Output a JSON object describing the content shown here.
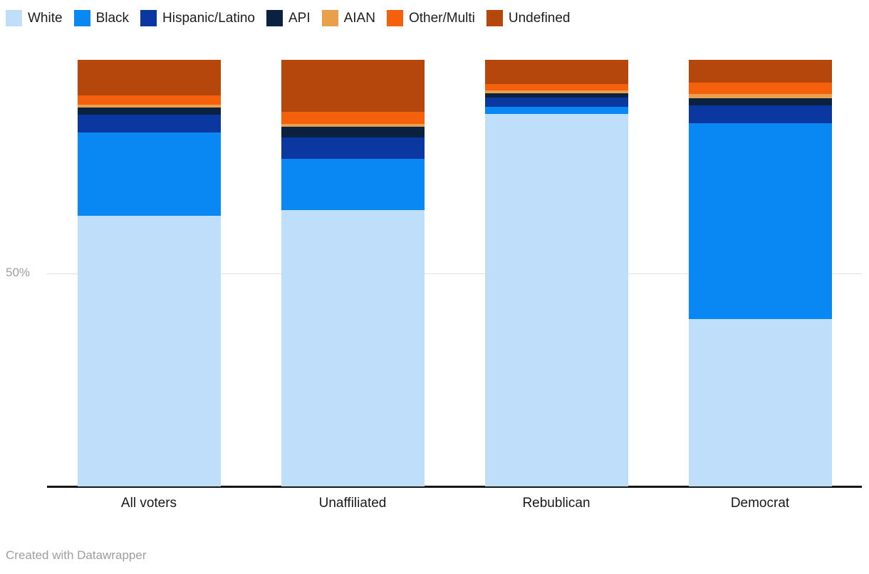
{
  "chart_data": {
    "type": "bar",
    "stacked": true,
    "orientation": "vertical",
    "title": "",
    "xlabel": "",
    "ylabel": "",
    "ylim": [
      0,
      100
    ],
    "grid": true,
    "legend_position": "top",
    "categories": [
      "All voters",
      "Unaffiliated",
      "Rebublican",
      "Democrat"
    ],
    "series": [
      {
        "name": "White",
        "color": "#BEDEFA",
        "values": [
          63.4,
          64.8,
          87.3,
          39.2
        ]
      },
      {
        "name": "Black",
        "color": "#0988F4",
        "values": [
          19.5,
          12.0,
          1.7,
          45.9
        ]
      },
      {
        "name": "Hispanic/Latino",
        "color": "#0B38A0",
        "values": [
          4.2,
          5.0,
          2.2,
          4.2
        ]
      },
      {
        "name": "API",
        "color": "#0A2240",
        "values": [
          1.7,
          2.5,
          1.0,
          1.7
        ]
      },
      {
        "name": "AIAN",
        "color": "#E9A04C",
        "values": [
          0.7,
          0.7,
          0.7,
          1.0
        ]
      },
      {
        "name": "Other/Multi",
        "color": "#F4600C",
        "values": [
          2.2,
          2.8,
          1.4,
          2.6
        ]
      },
      {
        "name": "Undefined",
        "color": "#B5470C",
        "values": [
          8.3,
          12.2,
          5.7,
          5.4
        ]
      }
    ],
    "yticks": [
      {
        "value": 50,
        "label": "50%"
      }
    ]
  },
  "colors": {
    "axis_line": "#161616",
    "grid_line": "#e0e0e0",
    "tick_text": "#9d9d9d",
    "label_text": "#1a1a1a"
  },
  "footer": {
    "text": "Created with Datawrapper"
  }
}
